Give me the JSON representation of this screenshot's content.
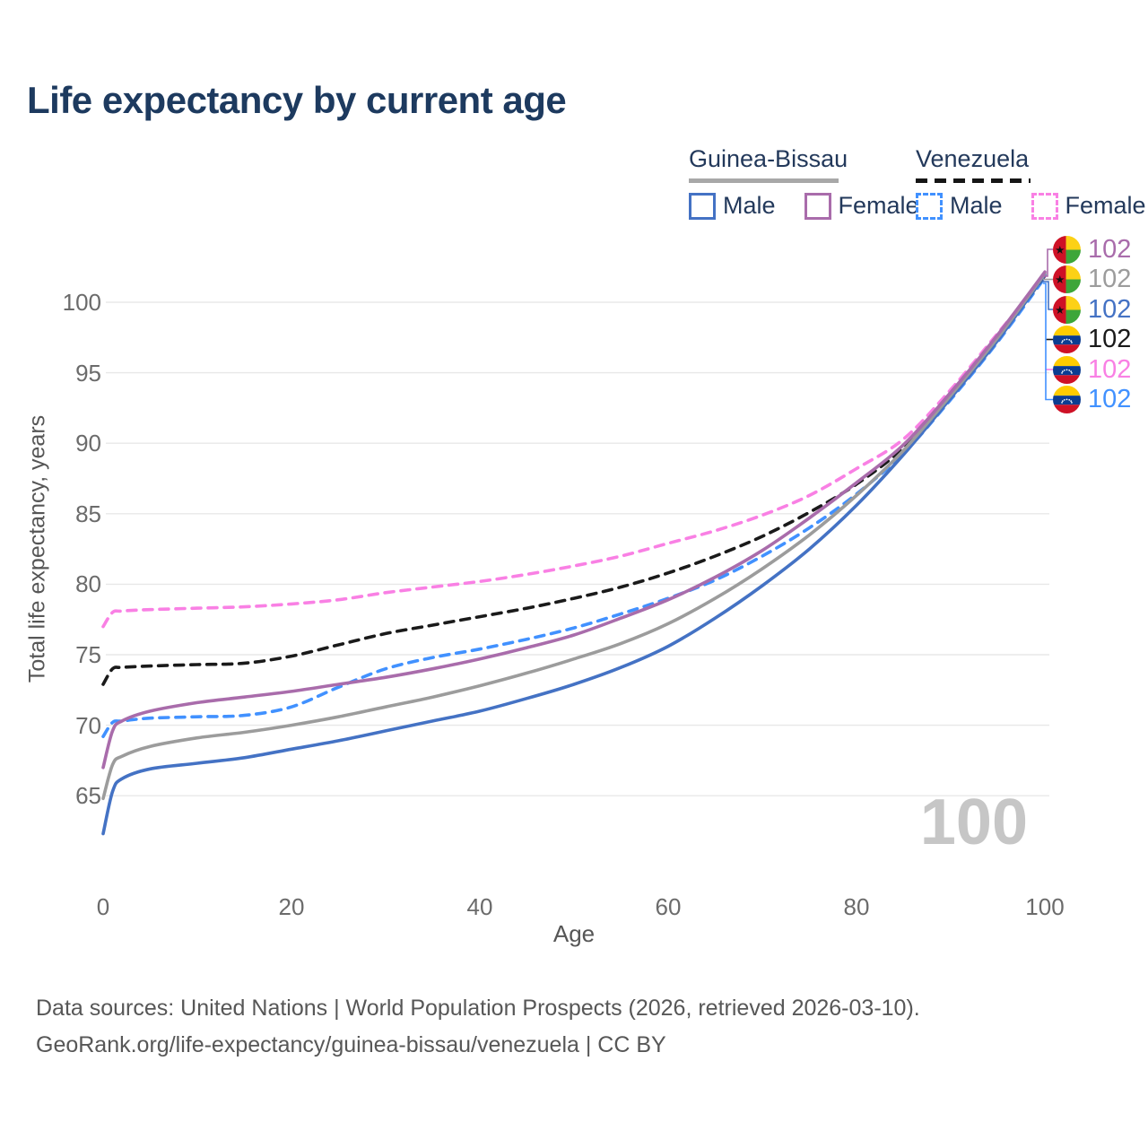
{
  "title": "Life expectancy by current age",
  "watermark_age": "100",
  "legend": {
    "groups": [
      {
        "label": "Guinea-Bissau",
        "line_style": "solid",
        "line_color": "#a8a8a8",
        "items": [
          {
            "label": "Male",
            "color": "#4472c4",
            "dash": false
          },
          {
            "label": "Female",
            "color": "#a96cab",
            "dash": false
          }
        ]
      },
      {
        "label": "Venezuela",
        "line_style": "dashed",
        "line_color": "#161616",
        "items": [
          {
            "label": "Male",
            "color": "#4191ff",
            "dash": true
          },
          {
            "label": "Female",
            "color": "#f980e4",
            "dash": true
          }
        ]
      }
    ]
  },
  "chart_data": {
    "type": "line",
    "title": "Life expectancy by current age",
    "xlabel": "Age",
    "ylabel": "Total life expectancy, years",
    "xlim": [
      0,
      100
    ],
    "ylim": [
      60,
      103
    ],
    "x_ticks": [
      0,
      20,
      40,
      60,
      80,
      100
    ],
    "y_ticks": [
      65,
      70,
      75,
      80,
      85,
      90,
      95,
      100
    ],
    "grid": "horizontal-only",
    "legend_position": "top-right",
    "x": [
      0,
      1,
      2,
      5,
      10,
      15,
      20,
      25,
      30,
      35,
      40,
      45,
      50,
      55,
      60,
      65,
      70,
      75,
      80,
      85,
      90,
      95,
      100
    ],
    "series": [
      {
        "name": "Venezuela — Male",
        "country": "Venezuela",
        "sex": "Male",
        "style": "dashed",
        "color": "#4191ff",
        "end_label": "102",
        "values": [
          69.2,
          70.2,
          70.3,
          70.5,
          70.6,
          70.7,
          71.3,
          72.7,
          74.0,
          74.8,
          75.4,
          76.1,
          76.9,
          77.9,
          79.0,
          80.3,
          82.0,
          84.0,
          86.4,
          89.3,
          93.1,
          97.2,
          101.75
        ]
      },
      {
        "name": "Venezuela — Female",
        "country": "Venezuela",
        "sex": "Female",
        "style": "dashed",
        "color": "#f980e4",
        "end_label": "102",
        "values": [
          77.0,
          78.0,
          78.1,
          78.2,
          78.3,
          78.4,
          78.6,
          78.9,
          79.4,
          79.8,
          80.2,
          80.7,
          81.3,
          82.0,
          82.9,
          83.8,
          84.9,
          86.3,
          88.2,
          90.3,
          93.8,
          97.8,
          101.85
        ]
      },
      {
        "name": "Venezuela — Both sexes",
        "country": "Venezuela",
        "sex": "All",
        "style": "dashed",
        "color": "#1a1a1a",
        "end_label": "102",
        "values": [
          72.9,
          74.0,
          74.1,
          74.2,
          74.3,
          74.4,
          74.9,
          75.7,
          76.5,
          77.1,
          77.7,
          78.3,
          79.0,
          79.8,
          80.8,
          82.0,
          83.4,
          85.1,
          87.1,
          89.7,
          93.5,
          97.4,
          101.9
        ]
      },
      {
        "name": "Guinea-Bissau — Male",
        "country": "Guinea-Bissau",
        "sex": "Male",
        "style": "solid",
        "color": "#4472c4",
        "end_label": "102",
        "values": [
          62.3,
          65.3,
          66.2,
          66.9,
          67.3,
          67.7,
          68.3,
          68.9,
          69.6,
          70.3,
          71.0,
          71.9,
          72.9,
          74.1,
          75.6,
          77.6,
          79.9,
          82.5,
          85.6,
          89.2,
          93.2,
          97.3,
          101.95
        ]
      },
      {
        "name": "Guinea-Bissau — Both sexes",
        "country": "Guinea-Bissau",
        "sex": "All",
        "style": "solid",
        "color": "#9c9c9c",
        "end_label": "102",
        "values": [
          64.8,
          67.2,
          67.8,
          68.5,
          69.1,
          69.5,
          70.0,
          70.6,
          71.3,
          72.0,
          72.8,
          73.7,
          74.7,
          75.8,
          77.2,
          79.0,
          81.1,
          83.5,
          86.3,
          89.5,
          93.4,
          97.5,
          102.05
        ]
      },
      {
        "name": "Guinea-Bissau — Female",
        "country": "Guinea-Bissau",
        "sex": "Female",
        "style": "solid",
        "color": "#a96cab",
        "end_label": "102",
        "values": [
          67.0,
          69.6,
          70.3,
          71.0,
          71.6,
          72.0,
          72.4,
          72.9,
          73.4,
          74.0,
          74.7,
          75.5,
          76.4,
          77.6,
          78.9,
          80.5,
          82.4,
          84.7,
          87.2,
          89.9,
          93.6,
          97.7,
          102.15
        ]
      }
    ]
  },
  "end_labels": [
    {
      "flag": "guinea-bissau",
      "value": "102",
      "color": "#a96cab"
    },
    {
      "flag": "guinea-bissau",
      "value": "102",
      "color": "#9c9c9c"
    },
    {
      "flag": "guinea-bissau",
      "value": "102",
      "color": "#4472c4"
    },
    {
      "flag": "venezuela",
      "value": "102",
      "color": "#1a1a1a"
    },
    {
      "flag": "venezuela",
      "value": "102",
      "color": "#f980e4"
    },
    {
      "flag": "venezuela",
      "value": "102",
      "color": "#4191ff"
    }
  ],
  "footer": {
    "line1": "Data sources: United Nations | World Population Prospects (2026, retrieved 2026-03-10).",
    "line2": "GeoRank.org/life-expectancy/guinea-bissau/venezuela | CC BY"
  }
}
